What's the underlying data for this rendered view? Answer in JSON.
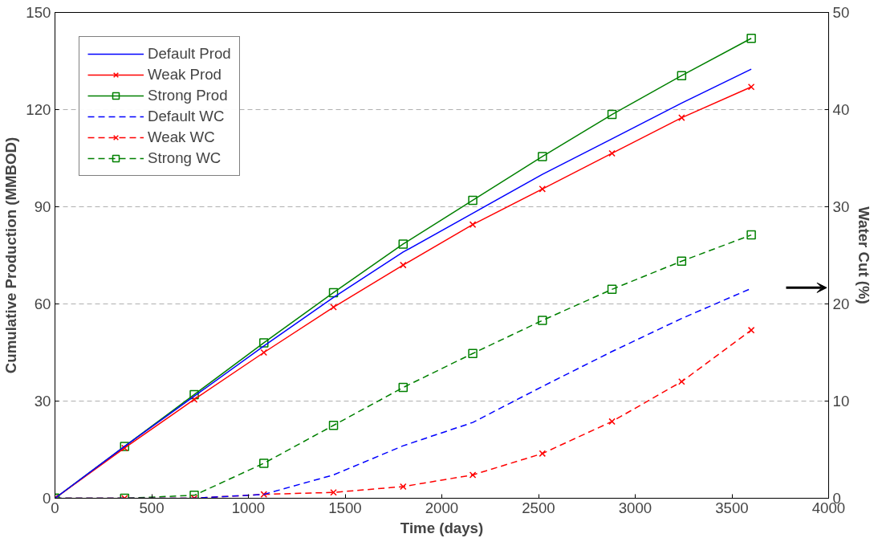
{
  "chart_data": {
    "type": "line",
    "xlabel": "Time (days)",
    "ylabel": "Cumulative Production (MMBOD)",
    "y2label": "Water Cut (%)",
    "x": [
      0,
      360,
      720,
      1080,
      1440,
      1800,
      2160,
      2520,
      2880,
      3240,
      3600
    ],
    "xlim": [
      0,
      4000
    ],
    "xticks": [
      0,
      500,
      1000,
      1500,
      2000,
      2500,
      3000,
      3500,
      4000
    ],
    "ylim": [
      0,
      150
    ],
    "yticks": [
      0,
      30,
      60,
      90,
      120,
      150
    ],
    "y2lim": [
      0,
      50
    ],
    "y2ticks": [
      0,
      10,
      20,
      30,
      40,
      50
    ],
    "grid": "y",
    "legend": "top left",
    "series": [
      {
        "name": "Default Prod",
        "color": "#0000ff",
        "marker": "none",
        "line_style": "solid",
        "values": [
          0,
          16,
          31.5,
          47,
          62,
          76,
          88,
          100,
          111,
          122,
          132.5
        ]
      },
      {
        "name": "Weak Prod",
        "color": "#ff0000",
        "marker": "cross",
        "line_style": "solid",
        "values": [
          0,
          15.5,
          30.5,
          45,
          59,
          72,
          84.5,
          95.5,
          106.5,
          117.5,
          127
        ]
      },
      {
        "name": "Strong Prod",
        "color": "#008000",
        "marker": "square",
        "line_style": "solid",
        "values": [
          0,
          16,
          32,
          48,
          63.5,
          78.5,
          92,
          105.5,
          118.5,
          130.5,
          142
        ]
      },
      {
        "name": "Default WC",
        "color": "#0000ff",
        "marker": "none",
        "line_style": "dashed",
        "axis": "y2",
        "values": [
          0,
          0,
          0,
          0.4,
          2.4,
          5.4,
          7.8,
          11.5,
          15.1,
          18.5,
          21.6
        ]
      },
      {
        "name": "Weak WC",
        "color": "#ff0000",
        "marker": "cross",
        "line_style": "dashed",
        "axis": "y2",
        "values": [
          0,
          0,
          0,
          0.4,
          0.6,
          1.2,
          2.4,
          4.6,
          7.9,
          12.0,
          17.3
        ]
      },
      {
        "name": "Strong WC",
        "color": "#008000",
        "marker": "square",
        "line_style": "dashed",
        "axis": "y2",
        "values": [
          0,
          0,
          0.3,
          3.6,
          7.5,
          11.4,
          14.9,
          18.3,
          21.5,
          24.4,
          27.1
        ]
      }
    ]
  }
}
